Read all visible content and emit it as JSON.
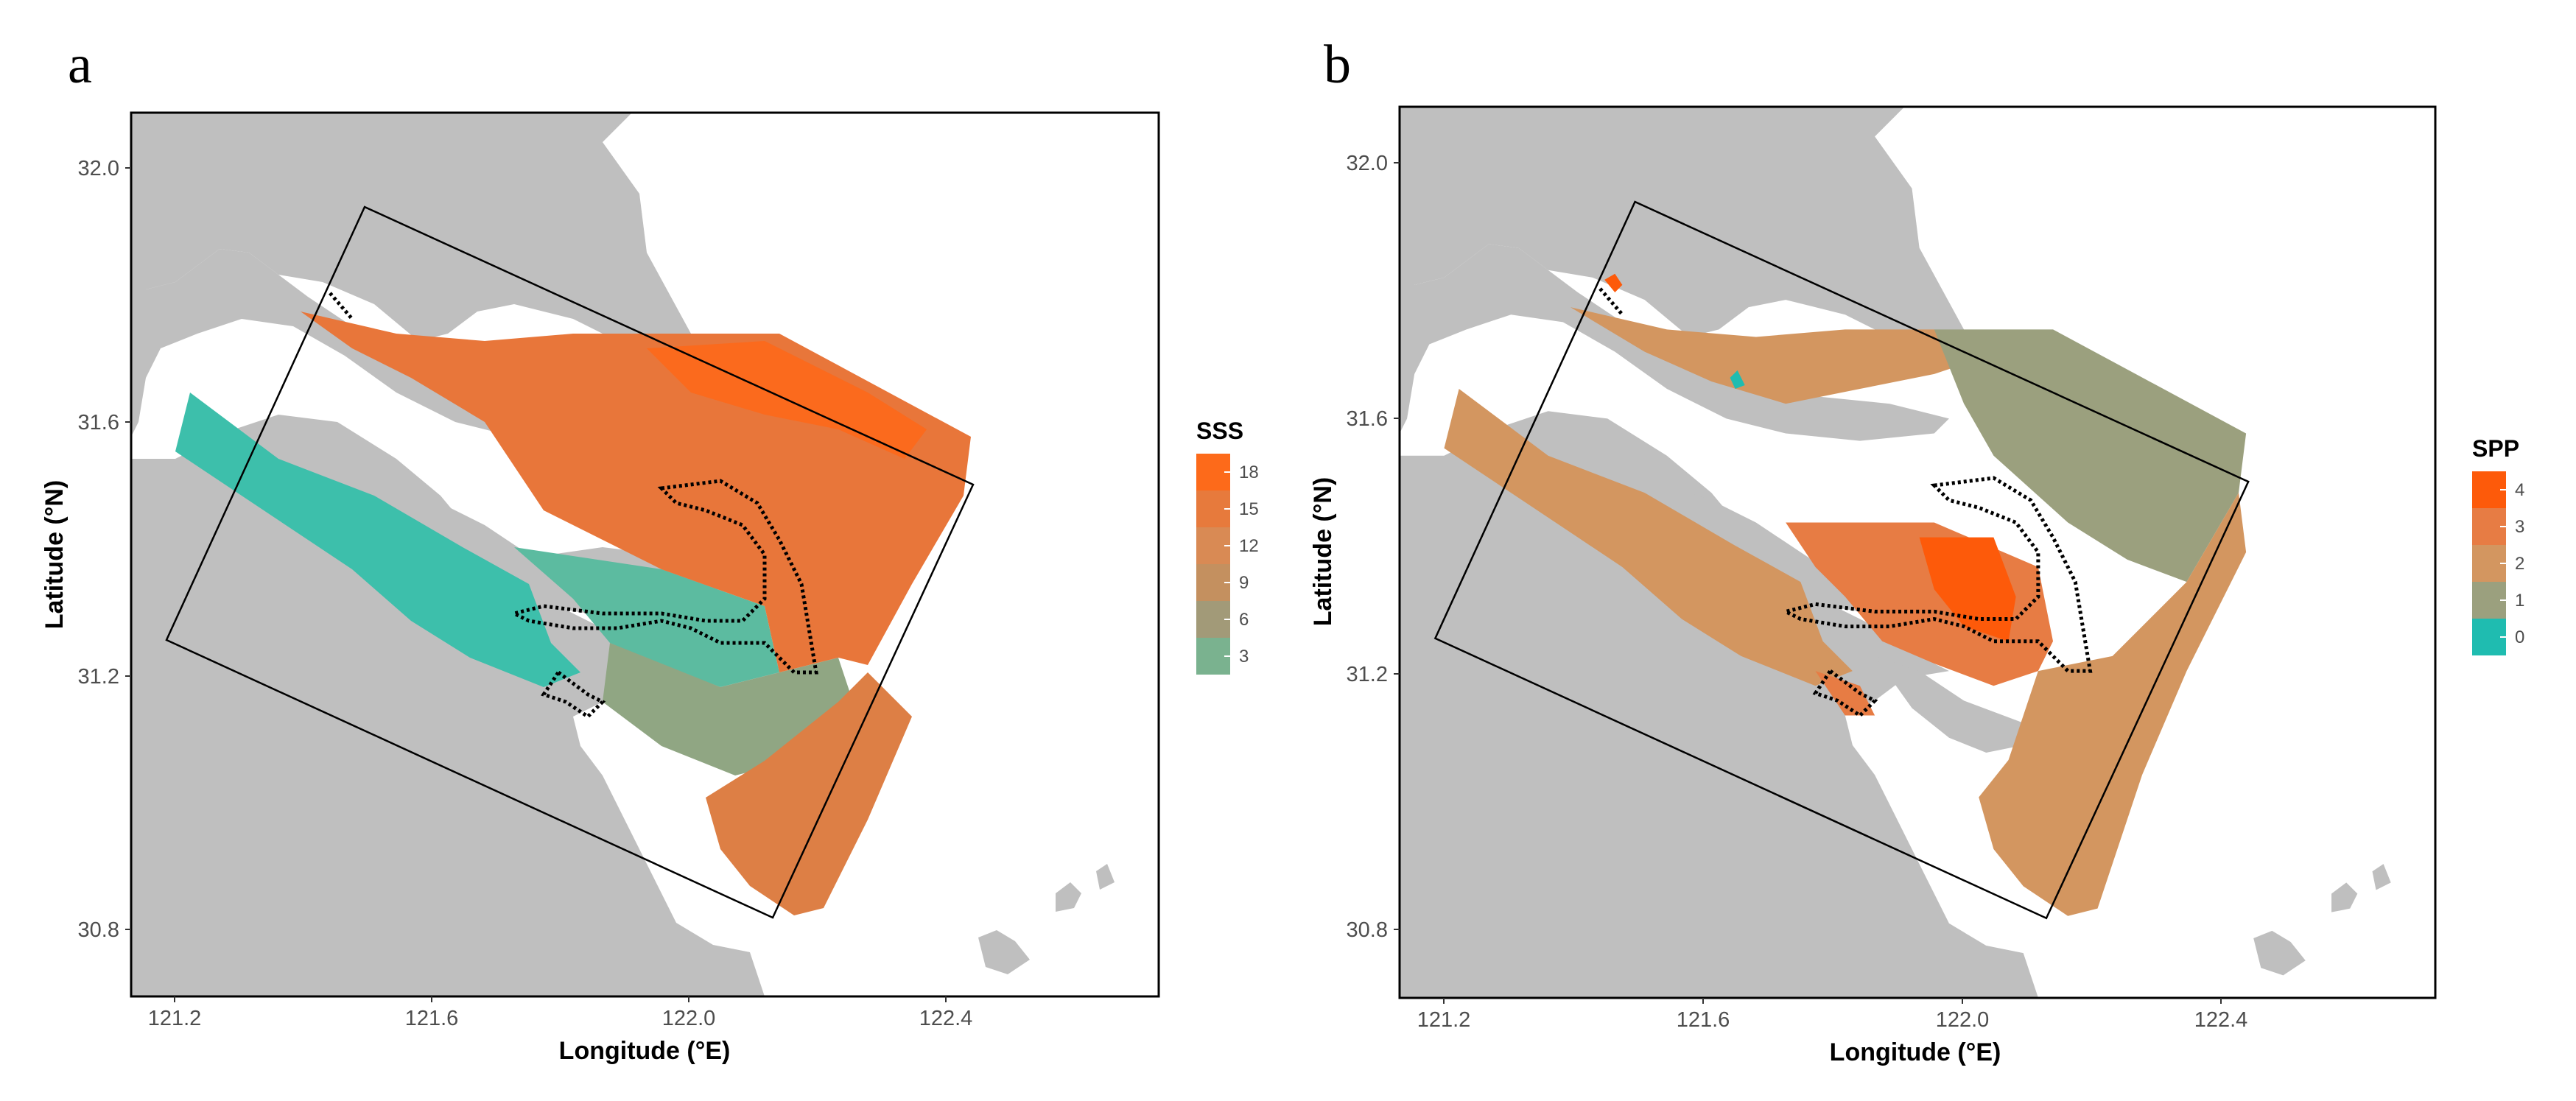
{
  "panels": [
    {
      "label": "a",
      "x_axis_title": "Longitude (°E)",
      "y_axis_title": "Latitude (°N)",
      "x_ticks": [
        "121.2",
        "121.6",
        "122.0",
        "122.4"
      ],
      "y_ticks": [
        "32.0",
        "31.6",
        "31.2",
        "30.8"
      ],
      "legend": {
        "title": "SSS",
        "ticks": [
          "18",
          "15",
          "12",
          "9",
          "6",
          "3"
        ],
        "colors": [
          "#fd6a1a",
          "#e77a3c",
          "#d98a54",
          "#c4905f",
          "#a29a78",
          "#7ab28f"
        ]
      }
    },
    {
      "label": "b",
      "x_axis_title": "Longitude (°E)",
      "y_axis_title": "Latitude (°N)",
      "x_ticks": [
        "121.2",
        "121.6",
        "122.0",
        "122.4"
      ],
      "y_ticks": [
        "32.0",
        "31.6",
        "31.2",
        "30.8"
      ],
      "legend": {
        "title": "SPP",
        "ticks": [
          "4",
          "3",
          "2",
          "1",
          "0"
        ],
        "colors": [
          "#fd5a0a",
          "#e77c44",
          "#d39660",
          "#9ba07e",
          "#1fbcb0"
        ]
      }
    }
  ]
}
